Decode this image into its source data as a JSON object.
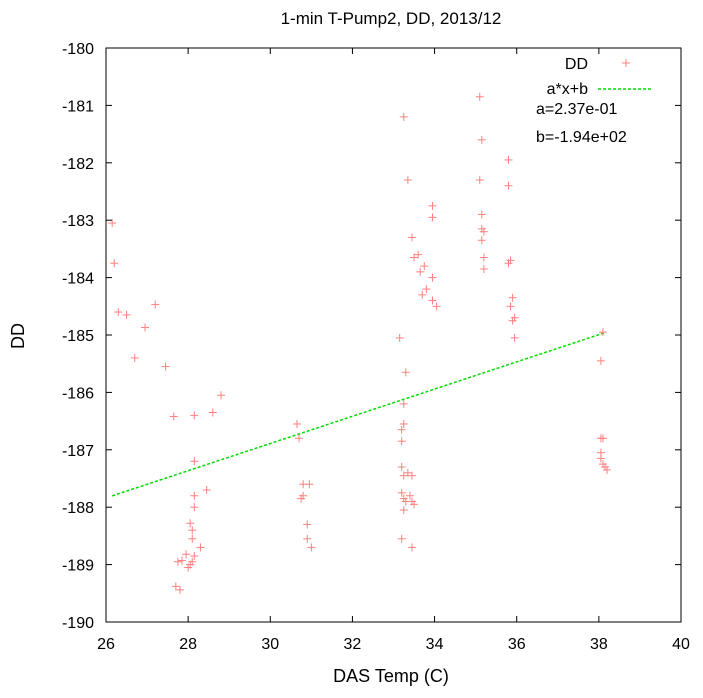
{
  "chart_data": {
    "type": "scatter",
    "title": "1-min T-Pump2, DD, 2013/12",
    "xlabel": "DAS Temp (C)",
    "ylabel": "DD",
    "xlim": [
      26,
      40
    ],
    "ylim": [
      -190,
      -180
    ],
    "xticks": [
      26,
      28,
      30,
      32,
      34,
      36,
      38,
      40
    ],
    "yticks": [
      -180,
      -181,
      -182,
      -183,
      -184,
      -185,
      -186,
      -187,
      -188,
      -189,
      -190
    ],
    "grid": false,
    "legend_position": "top-right",
    "colors": {
      "points": "#ff8080",
      "fit": "#00dd00"
    },
    "series": [
      {
        "name": "DD",
        "marker": "+",
        "points": [
          [
            26.15,
            -183.05
          ],
          [
            26.2,
            -183.75
          ],
          [
            26.3,
            -184.6
          ],
          [
            26.5,
            -184.65
          ],
          [
            26.7,
            -185.4
          ],
          [
            26.95,
            -184.87
          ],
          [
            27.2,
            -184.47
          ],
          [
            27.45,
            -185.55
          ],
          [
            27.65,
            -186.42
          ],
          [
            27.7,
            -189.38
          ],
          [
            27.8,
            -189.44
          ],
          [
            27.75,
            -188.95
          ],
          [
            27.85,
            -188.93
          ],
          [
            27.95,
            -188.82
          ],
          [
            28.0,
            -189.05
          ],
          [
            28.05,
            -189.0
          ],
          [
            28.1,
            -188.95
          ],
          [
            28.15,
            -188.85
          ],
          [
            28.05,
            -188.28
          ],
          [
            28.1,
            -188.4
          ],
          [
            28.1,
            -188.55
          ],
          [
            28.15,
            -188.0
          ],
          [
            28.15,
            -187.8
          ],
          [
            28.15,
            -187.2
          ],
          [
            28.15,
            -186.4
          ],
          [
            28.3,
            -188.7
          ],
          [
            28.45,
            -187.7
          ],
          [
            28.6,
            -186.35
          ],
          [
            28.8,
            -186.05
          ],
          [
            30.65,
            -186.55
          ],
          [
            30.7,
            -186.8
          ],
          [
            30.75,
            -187.85
          ],
          [
            30.8,
            -187.8
          ],
          [
            30.8,
            -187.6
          ],
          [
            30.95,
            -187.6
          ],
          [
            30.9,
            -188.3
          ],
          [
            30.9,
            -188.55
          ],
          [
            31.0,
            -188.7
          ],
          [
            33.15,
            -185.05
          ],
          [
            33.25,
            -181.2
          ],
          [
            33.35,
            -182.3
          ],
          [
            33.45,
            -183.3
          ],
          [
            33.5,
            -183.65
          ],
          [
            33.6,
            -183.6
          ],
          [
            33.65,
            -183.9
          ],
          [
            33.75,
            -183.8
          ],
          [
            33.7,
            -184.3
          ],
          [
            33.8,
            -184.2
          ],
          [
            33.95,
            -182.75
          ],
          [
            33.95,
            -182.95
          ],
          [
            33.95,
            -184.0
          ],
          [
            33.95,
            -184.4
          ],
          [
            34.05,
            -184.5
          ],
          [
            33.3,
            -185.65
          ],
          [
            33.25,
            -186.2
          ],
          [
            33.25,
            -186.55
          ],
          [
            33.2,
            -186.65
          ],
          [
            33.2,
            -186.85
          ],
          [
            33.2,
            -187.3
          ],
          [
            33.25,
            -187.45
          ],
          [
            33.35,
            -187.4
          ],
          [
            33.45,
            -187.45
          ],
          [
            33.2,
            -187.75
          ],
          [
            33.25,
            -187.85
          ],
          [
            33.3,
            -187.9
          ],
          [
            33.4,
            -187.8
          ],
          [
            33.45,
            -187.9
          ],
          [
            33.5,
            -187.95
          ],
          [
            33.25,
            -188.05
          ],
          [
            33.2,
            -188.55
          ],
          [
            33.45,
            -188.7
          ],
          [
            35.1,
            -180.85
          ],
          [
            35.15,
            -181.6
          ],
          [
            35.1,
            -182.3
          ],
          [
            35.15,
            -182.9
          ],
          [
            35.15,
            -183.15
          ],
          [
            35.15,
            -183.35
          ],
          [
            35.2,
            -183.2
          ],
          [
            35.2,
            -183.65
          ],
          [
            35.2,
            -183.85
          ],
          [
            35.8,
            -181.95
          ],
          [
            35.8,
            -182.4
          ],
          [
            35.8,
            -183.75
          ],
          [
            35.85,
            -183.7
          ],
          [
            35.85,
            -184.5
          ],
          [
            35.9,
            -184.35
          ],
          [
            35.9,
            -184.75
          ],
          [
            35.95,
            -184.7
          ],
          [
            35.95,
            -185.05
          ],
          [
            38.05,
            -185.45
          ],
          [
            38.1,
            -184.95
          ],
          [
            38.05,
            -186.8
          ],
          [
            38.1,
            -186.8
          ],
          [
            38.05,
            -187.05
          ],
          [
            38.05,
            -187.15
          ],
          [
            38.1,
            -187.25
          ],
          [
            38.15,
            -187.3
          ],
          [
            38.2,
            -187.35
          ]
        ]
      },
      {
        "name": "a*x+b",
        "line_style": "dashed",
        "a": 0.237,
        "b": -194,
        "x": [
          26.15,
          38.15
        ]
      }
    ],
    "annotations": [
      "a=2.37e-01",
      "b=-1.94e+02"
    ]
  }
}
